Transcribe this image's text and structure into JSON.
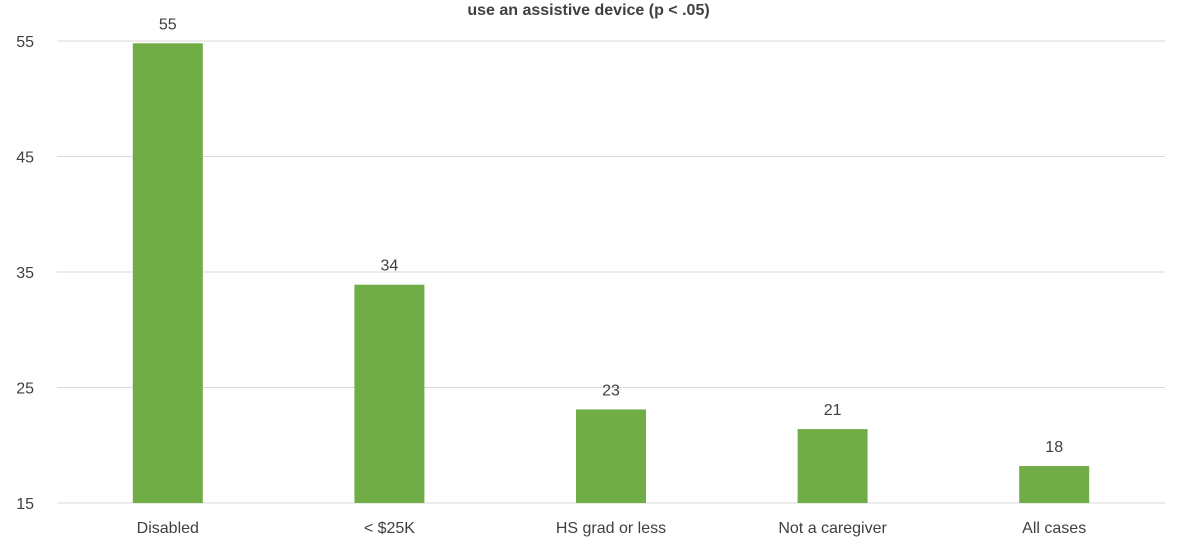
{
  "chart_data": {
    "type": "bar",
    "title": "use an assistive device (p < .05)",
    "categories": [
      "Disabled",
      "< $25K",
      "HS grad or less",
      "Not a caregiver",
      "All cases"
    ],
    "values": [
      54.8,
      33.9,
      23.1,
      21.4,
      18.2
    ],
    "data_labels": [
      "55",
      "34",
      "23",
      "21",
      "18"
    ],
    "ylim": [
      15,
      55
    ],
    "yticks": [
      15,
      25,
      35,
      45,
      55
    ],
    "xlabel": "",
    "ylabel": "",
    "grid": true,
    "legend": "none",
    "colors": {
      "bar": "#70AD47",
      "grid": "#D9D9D9",
      "text": "#404040"
    }
  }
}
